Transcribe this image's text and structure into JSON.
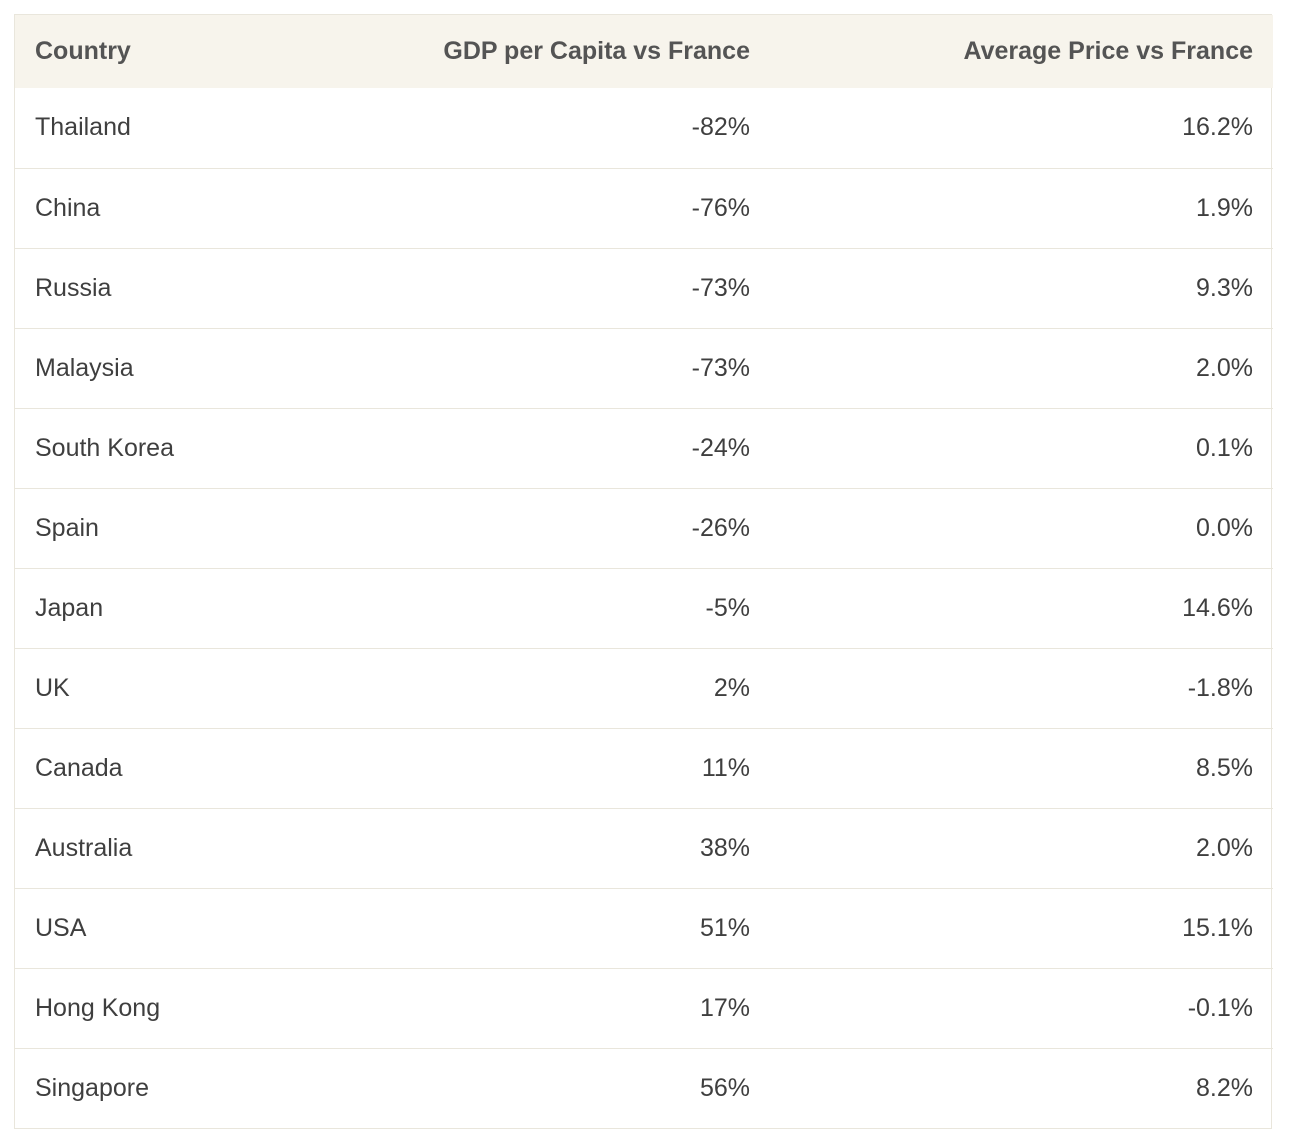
{
  "table": {
    "columns": [
      "Country",
      "GDP per Capita vs France",
      "Average Price vs France"
    ],
    "rows": [
      {
        "country": "Thailand",
        "gdp": "-82%",
        "price": "16.2%"
      },
      {
        "country": "China",
        "gdp": "-76%",
        "price": "1.9%"
      },
      {
        "country": "Russia",
        "gdp": "-73%",
        "price": "9.3%"
      },
      {
        "country": "Malaysia",
        "gdp": "-73%",
        "price": "2.0%"
      },
      {
        "country": "South Korea",
        "gdp": "-24%",
        "price": "0.1%"
      },
      {
        "country": "Spain",
        "gdp": "-26%",
        "price": "0.0%"
      },
      {
        "country": "Japan",
        "gdp": "-5%",
        "price": "14.6%"
      },
      {
        "country": "UK",
        "gdp": "2%",
        "price": "-1.8%"
      },
      {
        "country": "Canada",
        "gdp": "11%",
        "price": "8.5%"
      },
      {
        "country": "Australia",
        "gdp": "38%",
        "price": "2.0%"
      },
      {
        "country": "USA",
        "gdp": "51%",
        "price": "15.1%"
      },
      {
        "country": "Hong Kong",
        "gdp": "17%",
        "price": "-0.1%"
      },
      {
        "country": "Singapore",
        "gdp": "56%",
        "price": "8.2%"
      }
    ]
  },
  "colors": {
    "header_bg": "#f7f4ec",
    "border": "#e9e6dc",
    "header_text": "#545454",
    "body_text": "#3f3f3f"
  }
}
